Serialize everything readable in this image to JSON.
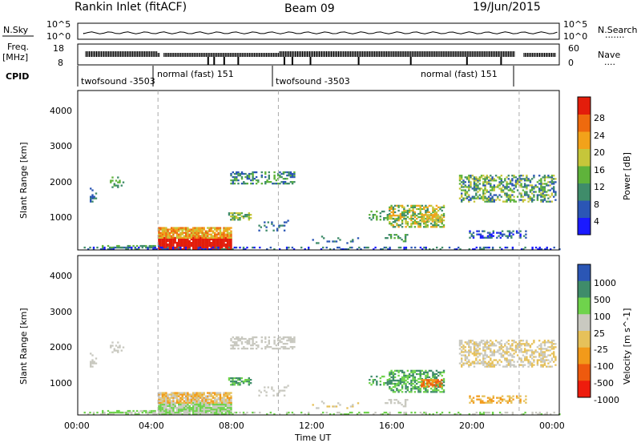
{
  "header": {
    "station": "Rankin Inlet (fitACF)",
    "beam": "Beam 09",
    "date": "19/Jun/2015"
  },
  "top_strip": {
    "left_label": "N.Sky",
    "right_label": "N.Search",
    "right_dots": "·······",
    "ticks_left": [
      "10^5",
      "10^0"
    ],
    "ticks_right": [
      "10^5",
      "10^0"
    ]
  },
  "freq_strip": {
    "left_label_line1": "Freq.",
    "left_label_line2": "[MHz]",
    "right_label": "Nave",
    "right_dots": "····",
    "ticks_left": [
      "18",
      "8"
    ],
    "ticks_right": [
      "60",
      "0"
    ]
  },
  "cpid": {
    "label": "CPID",
    "modes": [
      "twofsound -3503",
      "normal (fast) 151",
      "twofsound -3503",
      "normal (fast) 151"
    ]
  },
  "colors": {
    "power": [
      "#1a1aff",
      "#2b56b5",
      "#3f8c6a",
      "#5fb33b",
      "#c6c63a",
      "#f2a21a",
      "#ee6a0e",
      "#e31d0b"
    ],
    "velocity": [
      "#ee1c0d",
      "#ee5a0e",
      "#f29a1a",
      "#e6c15a",
      "#c9c9c0",
      "#6fd34c",
      "#3f8c6a",
      "#2b56b5"
    ]
  },
  "chart_data": [
    {
      "type": "heatmap",
      "name": "power",
      "xlabel": "",
      "ylabel": "Slant Range [km]",
      "xlim": [
        0,
        24
      ],
      "ylim": [
        180,
        4600
      ],
      "yticks": [
        "1000",
        "2000",
        "3000",
        "4000"
      ],
      "colorbar": {
        "label": "Power [dB]",
        "ticks": [
          "4",
          "8",
          "12",
          "16",
          "20",
          "24",
          "28"
        ]
      },
      "grid": "dashed vertical lines at 04:00, 10:00, 22:00"
    },
    {
      "type": "heatmap",
      "name": "velocity",
      "xlabel": "Time UT",
      "ylabel": "Slant Range [km]",
      "xlim": [
        0,
        24
      ],
      "ylim": [
        180,
        4600
      ],
      "xticks": [
        "00:00",
        "04:00",
        "08:00",
        "12:00",
        "16:00",
        "20:00",
        "00:00"
      ],
      "yticks": [
        "1000",
        "2000",
        "3000",
        "4000"
      ],
      "colorbar": {
        "label": "Velocity [m s^-1]",
        "ticks": [
          "1000",
          "500",
          "100",
          "25",
          "-25",
          "-100",
          "-500",
          "-1000"
        ]
      },
      "grid": "dashed vertical lines at 04:00, 10:00, 22:00"
    }
  ]
}
